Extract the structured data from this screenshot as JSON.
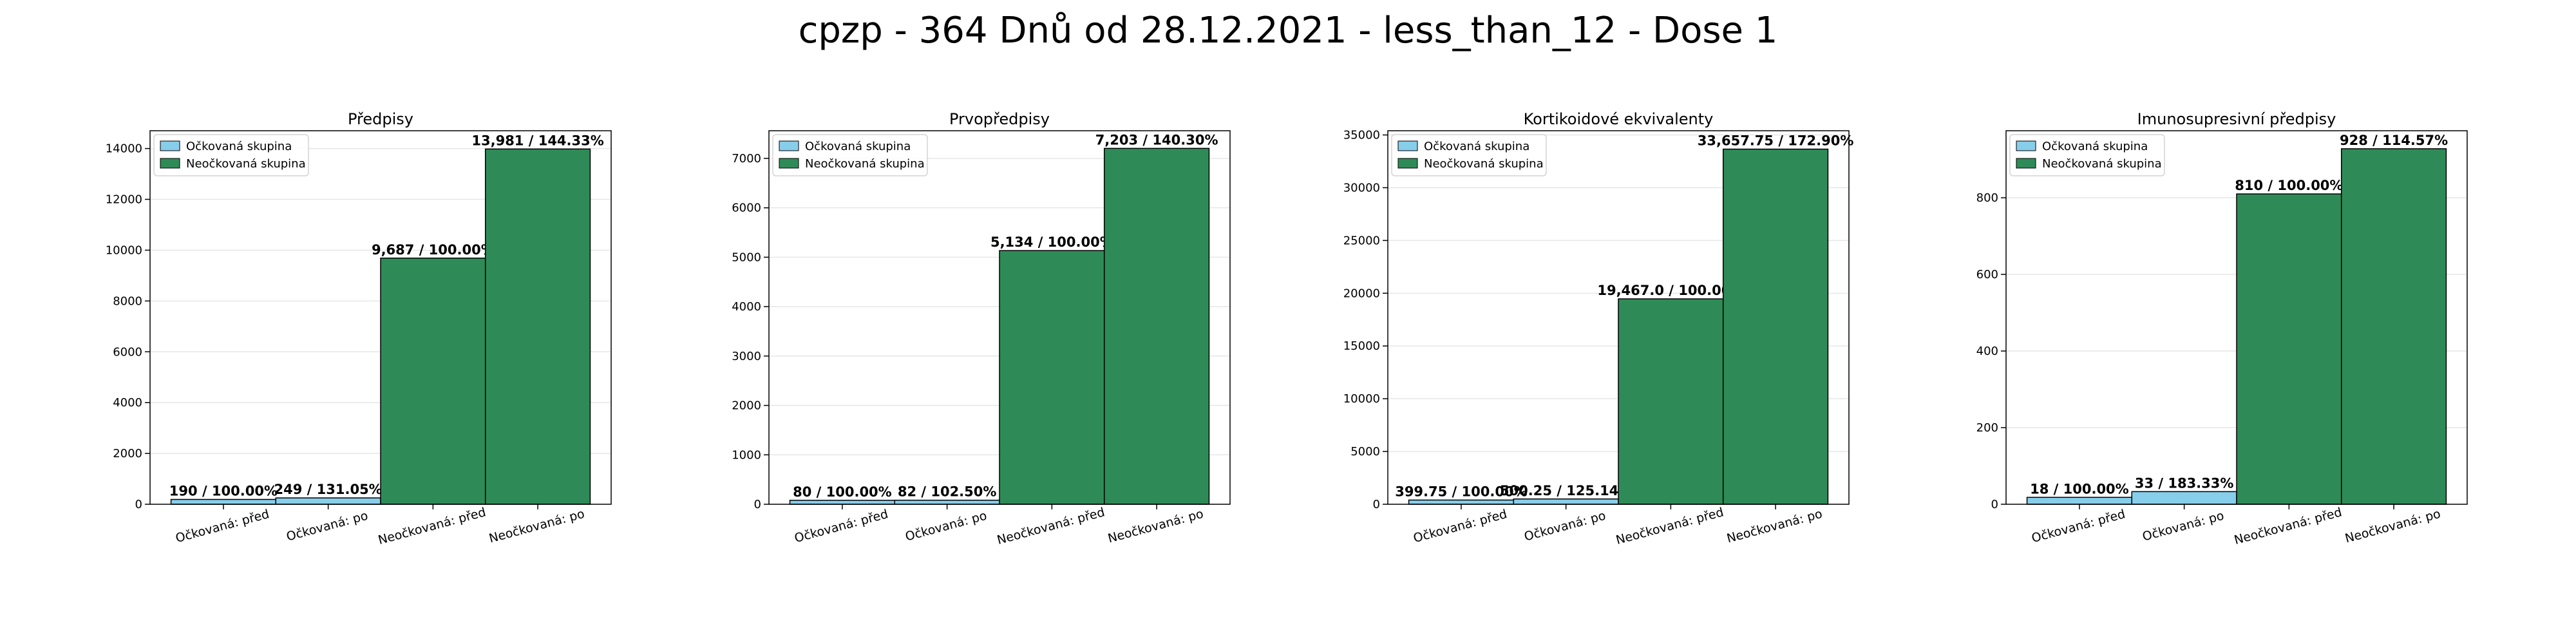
{
  "title": "cpzp - 364 Dnů od 28.12.2021 - less_than_12 - Dose 1",
  "colors": {
    "vaccinated": "#87ceeb",
    "unvaccinated": "#2e8b57",
    "grid": "#e6e6e6"
  },
  "chart_data": [
    {
      "type": "bar",
      "title": "Předpisy",
      "categories": [
        "Očkovaná: před",
        "Očkovaná: po",
        "Neočkovaná: před",
        "Neočkovaná: po"
      ],
      "values": [
        190,
        249,
        9687,
        13981
      ],
      "labels": [
        "190 / 100.00%",
        "249 / 131.05%",
        "9,687 / 100.00%",
        "13,981 / 144.33%"
      ],
      "ylim": [
        0,
        14700
      ],
      "yticks": [
        0,
        2000,
        4000,
        6000,
        8000,
        10000,
        12000,
        14000
      ],
      "legend": [
        "Očkovaná skupina",
        "Neočkovaná skupina"
      ],
      "legend_position": "top-left",
      "grid": true
    },
    {
      "type": "bar",
      "title": "Prvopředpisy",
      "categories": [
        "Očkovaná: před",
        "Očkovaná: po",
        "Neočkovaná: před",
        "Neočkovaná: po"
      ],
      "values": [
        80,
        82,
        5134,
        7203
      ],
      "labels": [
        "80 / 100.00%",
        "82 / 102.50%",
        "5,134 / 100.00%",
        "7,203 / 140.30%"
      ],
      "ylim": [
        0,
        7560
      ],
      "yticks": [
        0,
        1000,
        2000,
        3000,
        4000,
        5000,
        6000,
        7000
      ],
      "legend": [
        "Očkovaná skupina",
        "Neočkovaná skupina"
      ],
      "legend_position": "top-left",
      "grid": true
    },
    {
      "type": "bar",
      "title": "Kortikoidové ekvivalenty",
      "categories": [
        "Očkovaná: před",
        "Očkovaná: po",
        "Neočkovaná: před",
        "Neočkovaná: po"
      ],
      "values": [
        399.75,
        500.25,
        19467.0,
        33657.75
      ],
      "labels": [
        "399.75 / 100.00%",
        "500.25 / 125.14%",
        "19,467.0 / 100.00%",
        "33,657.75 / 172.90%"
      ],
      "ylim": [
        0,
        35400
      ],
      "yticks": [
        0,
        5000,
        10000,
        15000,
        20000,
        25000,
        30000,
        35000
      ],
      "legend": [
        "Očkovaná skupina",
        "Neočkovaná skupina"
      ],
      "legend_position": "top-left",
      "grid": true
    },
    {
      "type": "bar",
      "title": "Imunosupresivní předpisy",
      "categories": [
        "Očkovaná: před",
        "Očkovaná: po",
        "Neočkovaná: před",
        "Neočkovaná: po"
      ],
      "values": [
        18,
        33,
        810,
        928
      ],
      "labels": [
        "18 / 100.00%",
        "33 / 183.33%",
        "810 / 100.00%",
        "928 / 114.57%"
      ],
      "ylim": [
        0,
        975
      ],
      "yticks": [
        0,
        200,
        400,
        600,
        800
      ],
      "legend": [
        "Očkovaná skupina",
        "Neočkovaná skupina"
      ],
      "legend_position": "top-left",
      "grid": true
    }
  ]
}
